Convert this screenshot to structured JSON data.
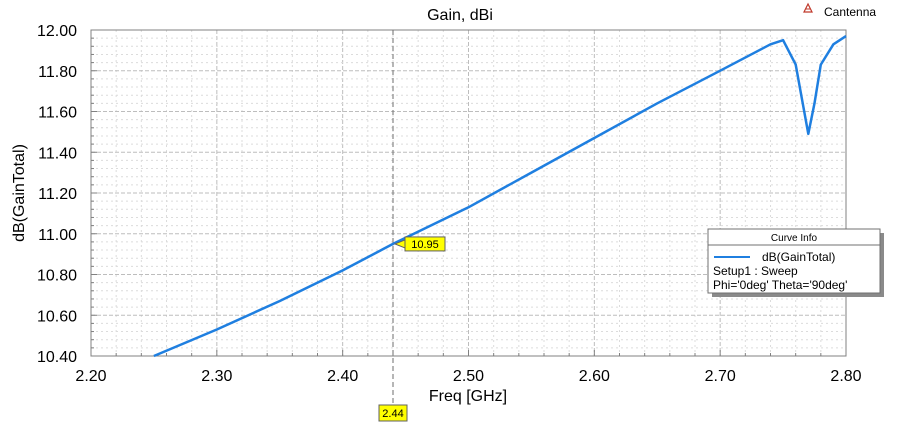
{
  "brand": {
    "name": "Cantenna"
  },
  "chart_data": {
    "type": "line",
    "title": "Gain, dBi",
    "xlabel": "Freq [GHz]",
    "ylabel": "dB(GainTotal)",
    "xlim": [
      2.2,
      2.8
    ],
    "ylim": [
      10.4,
      12.0
    ],
    "x_ticks": [
      "2.20",
      "2.30",
      "2.40",
      "2.50",
      "2.60",
      "2.70",
      "2.80"
    ],
    "y_ticks": [
      "10.40",
      "10.60",
      "10.80",
      "11.00",
      "11.20",
      "11.40",
      "11.60",
      "11.80",
      "12.00"
    ],
    "grid": true,
    "series": [
      {
        "name": "dB(GainTotal)",
        "color": "#1f7fe0",
        "x": [
          2.25,
          2.3,
          2.35,
          2.4,
          2.44,
          2.5,
          2.55,
          2.6,
          2.65,
          2.7,
          2.74,
          2.75,
          2.76,
          2.765,
          2.77,
          2.775,
          2.78,
          2.79,
          2.8
        ],
        "y": [
          10.4,
          10.53,
          10.67,
          10.82,
          10.95,
          11.13,
          11.3,
          11.47,
          11.64,
          11.8,
          11.93,
          11.95,
          11.83,
          11.66,
          11.49,
          11.64,
          11.83,
          11.93,
          11.97
        ]
      }
    ],
    "legend": {
      "title": "Curve Info",
      "position": "right",
      "entries": [
        "dB(GainTotal)",
        "Setup1 : Sweep",
        "Phi='0deg' Theta='90deg'"
      ]
    },
    "marker": {
      "x": 2.44,
      "y": 10.95,
      "x_label": "2.44",
      "y_label": "10.95"
    }
  }
}
